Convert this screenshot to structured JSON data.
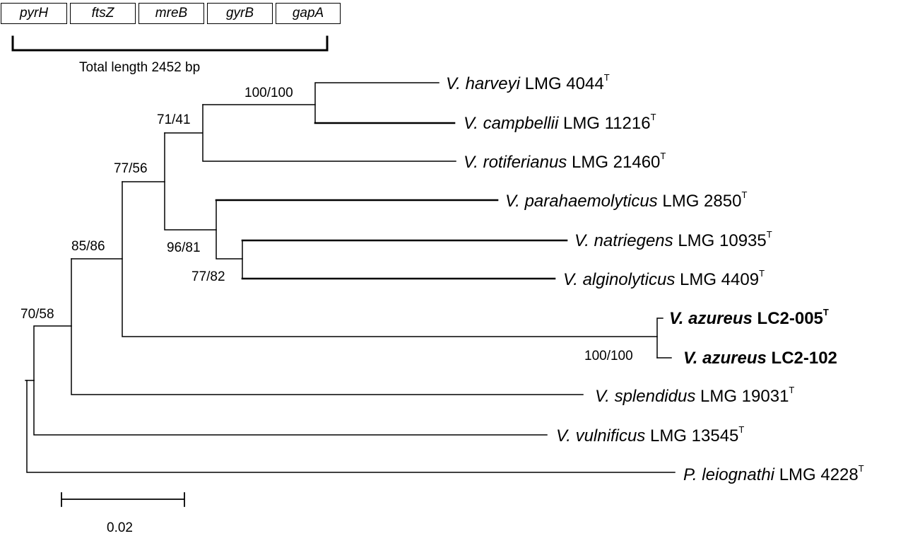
{
  "gene_boxes": [
    "pyrH",
    "ftsZ",
    "mreB",
    "gyrB",
    "gapA"
  ],
  "total_length_label": "Total length 2452 bp",
  "leaves": [
    {
      "genus": "V.",
      "species": "harveyi",
      "strain": "LMG 4044",
      "sup": "T",
      "bold": false
    },
    {
      "genus": "V.",
      "species": "campbellii",
      "strain": "LMG 11216",
      "sup": "T",
      "bold": false
    },
    {
      "genus": "V.",
      "species": "rotiferianus",
      "strain": "LMG 21460",
      "sup": "T",
      "bold": false
    },
    {
      "genus": "V.",
      "species": "parahaemolyticus",
      "strain": "LMG 2850",
      "sup": "T",
      "bold": false
    },
    {
      "genus": "V.",
      "species": "natriegens",
      "strain": "LMG 10935",
      "sup": "T",
      "bold": false
    },
    {
      "genus": "V.",
      "species": "alginolyticus",
      "strain": "LMG 4409",
      "sup": "T",
      "bold": false
    },
    {
      "genus": "V.",
      "species": "azureus",
      "strain": "LC2-005",
      "sup": "T",
      "bold": true
    },
    {
      "genus": "V.",
      "species": "azureus",
      "strain": "LC2-102",
      "sup": "",
      "bold": true
    },
    {
      "genus": "V.",
      "species": "splendidus",
      "strain": "LMG 19031",
      "sup": "T",
      "bold": false
    },
    {
      "genus": "V.",
      "species": "vulnificus",
      "strain": "LMG 13545",
      "sup": "T",
      "bold": false
    },
    {
      "genus": "P.",
      "species": "leiognathi",
      "strain": "LMG 4228",
      "sup": "T",
      "bold": false
    }
  ],
  "support_values": [
    "100/100",
    "71/41",
    "77/56",
    "96/81",
    "77/82",
    "85/86",
    "70/58",
    "100/100"
  ],
  "scale_bar_label": "0.02"
}
